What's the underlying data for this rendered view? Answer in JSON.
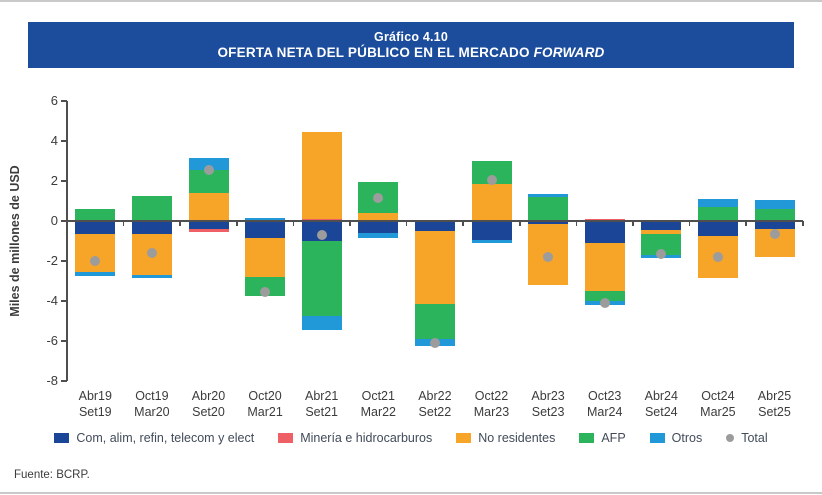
{
  "header": {
    "title": "Gráfico 4.10",
    "subtitle_main": "OFERTA NETA DEL PÚBLICO EN EL MERCADO ",
    "subtitle_italic": "FORWARD"
  },
  "footer": {
    "source": "Fuente: BCRP."
  },
  "colors": {
    "header_bg": "#1C4C9C",
    "axis": "#4f4f4f",
    "text": "#3C3C3C"
  },
  "chart_data": {
    "type": "bar",
    "stacked": true,
    "has_total_markers": true,
    "title": "Gráfico 4.10",
    "subtitle": "OFERTA NETA DEL PÚBLICO EN EL MERCADO FORWARD",
    "ylabel": "Miles de millones de USD",
    "ylim": [
      -8,
      6
    ],
    "yticks": [
      6,
      4,
      2,
      0,
      -2,
      -4,
      -6,
      -8
    ],
    "grid": false,
    "legend_position": "bottom",
    "categories": [
      [
        "Abr19",
        "Set19"
      ],
      [
        "Oct19",
        "Mar20"
      ],
      [
        "Abr20",
        "Set20"
      ],
      [
        "Oct20",
        "Mar21"
      ],
      [
        "Abr21",
        "Set21"
      ],
      [
        "Oct21",
        "Mar22"
      ],
      [
        "Abr22",
        "Set22"
      ],
      [
        "Oct22",
        "Mar23"
      ],
      [
        "Abr23",
        "Set23"
      ],
      [
        "Oct23",
        "Mar24"
      ],
      [
        "Abr24",
        "Set24"
      ],
      [
        "Oct24",
        "Mar25"
      ],
      [
        "Abr25",
        "Set25"
      ]
    ],
    "series": [
      {
        "name": "Com, alim, refin, telecom y elect",
        "color": "#1B4697",
        "values": [
          -0.65,
          -0.65,
          -0.4,
          -0.85,
          -1.0,
          -0.6,
          -0.5,
          -0.95,
          -0.15,
          -1.1,
          -0.45,
          -0.75,
          -0.4
        ]
      },
      {
        "name": "Minería e hidrocarburos",
        "color": "#EE5F66",
        "values": [
          0,
          0,
          -0.15,
          0,
          0.1,
          0,
          0,
          0,
          0,
          0.1,
          0.05,
          0,
          0
        ]
      },
      {
        "name": "No residentes",
        "color": "#F7A528",
        "values": [
          -1.9,
          -2.05,
          1.4,
          -1.95,
          4.35,
          0.4,
          -3.65,
          1.85,
          -3.05,
          -2.4,
          -0.2,
          -2.1,
          -1.4
        ]
      },
      {
        "name": "AFP",
        "color": "#2BB45B",
        "values": [
          0.6,
          1.25,
          1.15,
          -0.95,
          -3.75,
          1.55,
          -1.75,
          1.15,
          1.2,
          -0.5,
          -1.05,
          0.7,
          0.6
        ]
      },
      {
        "name": "Otros",
        "color": "#2199D8",
        "values": [
          -0.2,
          -0.15,
          0.6,
          0.15,
          -0.7,
          -0.25,
          -0.35,
          -0.15,
          0.15,
          -0.2,
          -0.15,
          0.4,
          0.45
        ]
      }
    ],
    "total": {
      "name": "Total",
      "color": "#9C9C9C",
      "values": [
        -2.0,
        -1.6,
        2.55,
        -3.55,
        -0.72,
        1.15,
        -6.1,
        2.05,
        -1.8,
        -4.1,
        -1.65,
        -1.8,
        -0.65
      ]
    }
  }
}
